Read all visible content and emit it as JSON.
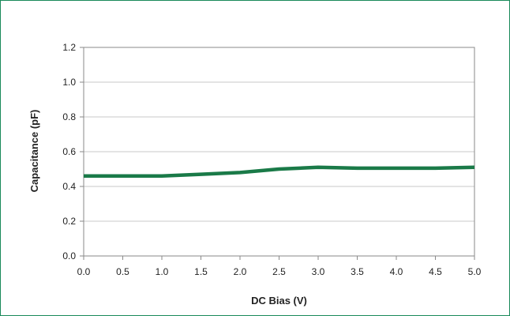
{
  "chart_data": {
    "type": "line",
    "title": "",
    "xlabel": "DC Bias (V)",
    "ylabel": "Capacitance (pF)",
    "xlim": [
      0.0,
      5.0
    ],
    "ylim": [
      0.0,
      1.2
    ],
    "x_ticks": [
      "0.0",
      "0.5",
      "1.0",
      "1.5",
      "2.0",
      "2.5",
      "3.0",
      "3.5",
      "4.0",
      "4.5",
      "5.0"
    ],
    "y_ticks": [
      "0.0",
      "0.2",
      "0.4",
      "0.6",
      "0.8",
      "1.0",
      "1.2"
    ],
    "grid": true,
    "legend": "none",
    "series": [
      {
        "color": "#1a7a48",
        "x": [
          0.0,
          0.5,
          1.0,
          1.5,
          2.0,
          2.5,
          3.0,
          3.5,
          4.0,
          4.5,
          5.0
        ],
        "y": [
          0.46,
          0.46,
          0.46,
          0.47,
          0.48,
          0.5,
          0.51,
          0.505,
          0.505,
          0.505,
          0.51
        ]
      }
    ]
  },
  "colors": {
    "frame_border": "#1a8a5a",
    "grid": "#c8c8c8",
    "axis": "#8a8a8a"
  }
}
